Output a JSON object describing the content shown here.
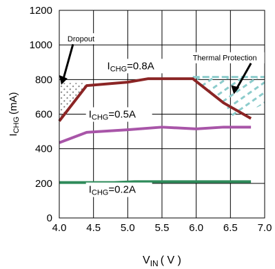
{
  "chart_data": {
    "type": "line",
    "title": "",
    "xlabel": {
      "main": "V",
      "sub": "IN",
      "unit": "( V )"
    },
    "ylabel": {
      "main": "I",
      "sub": "CHG",
      "unit": "(mA)"
    },
    "xlim": [
      4.0,
      7.0
    ],
    "ylim": [
      0,
      1200
    ],
    "xticks": [
      "4.0",
      "4.5",
      "5.0",
      "5.5",
      "6.0",
      "6.5",
      "7.0"
    ],
    "yticks": [
      "0",
      "200",
      "400",
      "600",
      "800",
      "1000",
      "1200"
    ],
    "xtick_values": [
      4.0,
      4.5,
      5.0,
      5.5,
      6.0,
      6.5,
      7.0
    ],
    "ytick_values": [
      0,
      200,
      400,
      600,
      800,
      1000,
      1200
    ],
    "grid": true,
    "series": [
      {
        "label_main": "I",
        "label_sub": "CHG",
        "label_value": "=0.8A",
        "color": "#8b2525",
        "points": [
          [
            4.0,
            560
          ],
          [
            4.4,
            765
          ],
          [
            5.0,
            785
          ],
          [
            5.3,
            805
          ],
          [
            5.95,
            805
          ],
          [
            6.4,
            665
          ],
          [
            6.8,
            575
          ]
        ]
      },
      {
        "label_main": "I",
        "label_sub": "CHG",
        "label_value": "=0.5A",
        "color": "#a855a8",
        "points": [
          [
            4.0,
            435
          ],
          [
            4.4,
            495
          ],
          [
            5.0,
            510
          ],
          [
            5.5,
            525
          ],
          [
            6.0,
            515
          ],
          [
            6.4,
            525
          ],
          [
            6.8,
            525
          ]
        ]
      },
      {
        "label_main": "I",
        "label_sub": "CHG",
        "label_value": "=0.2A",
        "color": "#2e8b5a",
        "points": [
          [
            4.0,
            205
          ],
          [
            4.8,
            205
          ],
          [
            5.1,
            210
          ],
          [
            5.5,
            210
          ],
          [
            6.0,
            210
          ],
          [
            6.8,
            210
          ]
        ]
      }
    ],
    "annotations": [
      {
        "text": "Dropout",
        "region_color": "#777777"
      },
      {
        "text": "Thermal Protection",
        "region_color": "#8ccccc"
      }
    ]
  }
}
